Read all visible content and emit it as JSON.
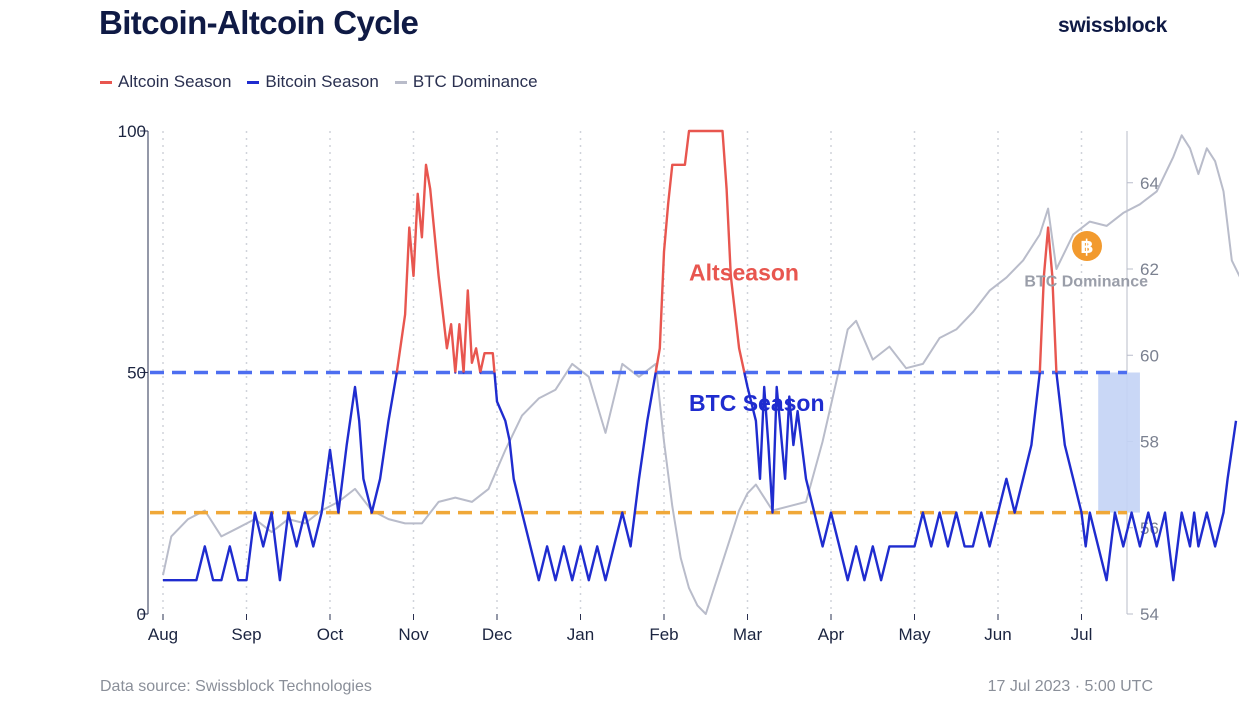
{
  "header": {
    "title": "Bitcoin-Altcoin Cycle",
    "brand": "swissblock"
  },
  "legend": [
    {
      "label": "Altcoin Season",
      "color": "#e8564f"
    },
    {
      "label": "Bitcoin Season",
      "color": "#1f2ccf"
    },
    {
      "label": "BTC Dominance",
      "color": "#b9bcca"
    }
  ],
  "footer": {
    "source": "Data source: Swissblock Technologies",
    "date": "17 Jul 2023 · 5:00 UTC"
  },
  "chart_data": {
    "type": "line",
    "title": "Bitcoin-Altcoin Cycle",
    "x_labels": [
      "Aug",
      "Sep",
      "Oct",
      "Nov",
      "Dec",
      "Jan",
      "Feb",
      "Mar",
      "Apr",
      "May",
      "Jun",
      "Jul"
    ],
    "y_left": {
      "range": [
        0,
        100
      ],
      "ticks": [
        0,
        50,
        100
      ]
    },
    "y_right": {
      "range": [
        54,
        65.2
      ],
      "ticks": [
        54,
        56,
        58,
        60,
        62,
        64
      ]
    },
    "grid": "vertical dotted",
    "legend_placement": "top-left",
    "thresholds": [
      {
        "value": 50,
        "color": "#4d6ef0",
        "style": "dashed"
      },
      {
        "value": 21,
        "color": "#f0a838",
        "style": "dashed"
      }
    ],
    "annotations": [
      {
        "text": "Altseason",
        "color": "#e8564f",
        "month": 6.3,
        "value": 69
      },
      {
        "text": "BTC Season",
        "color": "#1f2ccf",
        "month": 6.3,
        "value": 42
      },
      {
        "text": "BTC Dominance",
        "color": "#9a9ea9",
        "month": 11.8,
        "value_right": 61.6
      }
    ],
    "shaded_region": {
      "from_month": 11.2,
      "to_month": 11.7,
      "from_value": 21,
      "to_value": 50,
      "color": "#c3d3f5"
    },
    "series": [
      {
        "name": "Bitcoin-Altcoin Cycle",
        "axis": "left",
        "points": [
          [
            0.0,
            7
          ],
          [
            0.4,
            7
          ],
          [
            0.5,
            14
          ],
          [
            0.6,
            7
          ],
          [
            0.7,
            7
          ],
          [
            0.8,
            14
          ],
          [
            0.9,
            7
          ],
          [
            1.0,
            7
          ],
          [
            1.1,
            21
          ],
          [
            1.2,
            14
          ],
          [
            1.3,
            21
          ],
          [
            1.4,
            7
          ],
          [
            1.5,
            21
          ],
          [
            1.6,
            14
          ],
          [
            1.7,
            21
          ],
          [
            1.8,
            14
          ],
          [
            1.9,
            21
          ],
          [
            2.0,
            34
          ],
          [
            2.1,
            21
          ],
          [
            2.2,
            35
          ],
          [
            2.3,
            47
          ],
          [
            2.35,
            40
          ],
          [
            2.4,
            28
          ],
          [
            2.5,
            21
          ],
          [
            2.6,
            28
          ],
          [
            2.7,
            40
          ],
          [
            2.8,
            50
          ],
          [
            2.9,
            62
          ],
          [
            2.95,
            80
          ],
          [
            3.0,
            70
          ],
          [
            3.05,
            87
          ],
          [
            3.1,
            78
          ],
          [
            3.15,
            93
          ],
          [
            3.2,
            88
          ],
          [
            3.3,
            70
          ],
          [
            3.4,
            55
          ],
          [
            3.45,
            60
          ],
          [
            3.5,
            50
          ],
          [
            3.55,
            60
          ],
          [
            3.6,
            50
          ],
          [
            3.65,
            67
          ],
          [
            3.7,
            52
          ],
          [
            3.75,
            55
          ],
          [
            3.8,
            50
          ],
          [
            3.85,
            54
          ],
          [
            3.95,
            54
          ],
          [
            4.0,
            44
          ],
          [
            4.1,
            40
          ],
          [
            4.15,
            36
          ],
          [
            4.2,
            28
          ],
          [
            4.3,
            21
          ],
          [
            4.4,
            14
          ],
          [
            4.5,
            7
          ],
          [
            4.6,
            14
          ],
          [
            4.7,
            7
          ],
          [
            4.8,
            14
          ],
          [
            4.9,
            7
          ],
          [
            5.0,
            14
          ],
          [
            5.1,
            7
          ],
          [
            5.2,
            14
          ],
          [
            5.3,
            7
          ],
          [
            5.4,
            14
          ],
          [
            5.5,
            21
          ],
          [
            5.6,
            14
          ],
          [
            5.7,
            28
          ],
          [
            5.8,
            40
          ],
          [
            5.9,
            50
          ],
          [
            5.95,
            55
          ],
          [
            6.0,
            75
          ],
          [
            6.05,
            85
          ],
          [
            6.1,
            93
          ],
          [
            6.25,
            93
          ],
          [
            6.3,
            100
          ],
          [
            6.7,
            100
          ],
          [
            6.75,
            88
          ],
          [
            6.8,
            70
          ],
          [
            6.9,
            55
          ],
          [
            7.0,
            47
          ],
          [
            7.1,
            40
          ],
          [
            7.15,
            28
          ],
          [
            7.2,
            47
          ],
          [
            7.25,
            35
          ],
          [
            7.3,
            21
          ],
          [
            7.35,
            47
          ],
          [
            7.45,
            28
          ],
          [
            7.5,
            45
          ],
          [
            7.55,
            35
          ],
          [
            7.6,
            42
          ],
          [
            7.7,
            28
          ],
          [
            7.8,
            21
          ],
          [
            7.9,
            14
          ],
          [
            8.0,
            21
          ],
          [
            8.1,
            14
          ],
          [
            8.2,
            7
          ],
          [
            8.3,
            14
          ],
          [
            8.4,
            7
          ],
          [
            8.5,
            14
          ],
          [
            8.6,
            7
          ],
          [
            8.7,
            14
          ],
          [
            8.8,
            14
          ],
          [
            9.0,
            14
          ],
          [
            9.1,
            21
          ],
          [
            9.2,
            14
          ],
          [
            9.3,
            21
          ],
          [
            9.4,
            14
          ],
          [
            9.5,
            21
          ],
          [
            9.6,
            14
          ],
          [
            9.7,
            14
          ],
          [
            9.8,
            21
          ],
          [
            9.9,
            14
          ],
          [
            10.0,
            21
          ],
          [
            10.1,
            28
          ],
          [
            10.2,
            21
          ],
          [
            10.3,
            28
          ],
          [
            10.4,
            35
          ],
          [
            10.5,
            50
          ],
          [
            10.55,
            70
          ],
          [
            10.6,
            80
          ],
          [
            10.65,
            70
          ],
          [
            10.7,
            50
          ],
          [
            10.8,
            35
          ],
          [
            10.9,
            28
          ],
          [
            11.0,
            21
          ],
          [
            11.05,
            14
          ],
          [
            11.1,
            21
          ],
          [
            11.2,
            14
          ],
          [
            11.3,
            7
          ],
          [
            11.4,
            21
          ],
          [
            11.5,
            14
          ],
          [
            11.6,
            21
          ],
          [
            11.7,
            14
          ],
          [
            11.8,
            21
          ],
          [
            11.9,
            14
          ],
          [
            12.0,
            21
          ],
          [
            12.1,
            7
          ],
          [
            12.2,
            21
          ],
          [
            12.3,
            14
          ],
          [
            12.35,
            21
          ],
          [
            12.4,
            14
          ],
          [
            12.5,
            21
          ],
          [
            12.6,
            14
          ],
          [
            12.7,
            21
          ],
          [
            12.75,
            28
          ],
          [
            12.85,
            40
          ]
        ]
      },
      {
        "name": "BTC Dominance",
        "axis": "right",
        "points": [
          [
            0.0,
            54.9
          ],
          [
            0.1,
            55.8
          ],
          [
            0.3,
            56.2
          ],
          [
            0.5,
            56.4
          ],
          [
            0.7,
            55.8
          ],
          [
            0.9,
            56.0
          ],
          [
            1.1,
            56.2
          ],
          [
            1.3,
            55.9
          ],
          [
            1.5,
            56.2
          ],
          [
            1.7,
            56.1
          ],
          [
            1.9,
            56.4
          ],
          [
            2.1,
            56.6
          ],
          [
            2.3,
            56.9
          ],
          [
            2.5,
            56.4
          ],
          [
            2.7,
            56.2
          ],
          [
            2.9,
            56.1
          ],
          [
            3.1,
            56.1
          ],
          [
            3.3,
            56.6
          ],
          [
            3.5,
            56.7
          ],
          [
            3.7,
            56.6
          ],
          [
            3.9,
            56.9
          ],
          [
            4.1,
            57.8
          ],
          [
            4.3,
            58.6
          ],
          [
            4.5,
            59.0
          ],
          [
            4.7,
            59.2
          ],
          [
            4.9,
            59.8
          ],
          [
            5.1,
            59.5
          ],
          [
            5.3,
            58.2
          ],
          [
            5.5,
            59.8
          ],
          [
            5.7,
            59.5
          ],
          [
            5.9,
            59.8
          ],
          [
            6.0,
            58.0
          ],
          [
            6.1,
            56.5
          ],
          [
            6.2,
            55.3
          ],
          [
            6.3,
            54.6
          ],
          [
            6.4,
            54.2
          ],
          [
            6.5,
            54.0
          ],
          [
            6.6,
            54.6
          ],
          [
            6.7,
            55.2
          ],
          [
            6.8,
            55.8
          ],
          [
            6.9,
            56.4
          ],
          [
            7.0,
            56.8
          ],
          [
            7.1,
            57.0
          ],
          [
            7.2,
            56.7
          ],
          [
            7.3,
            56.4
          ],
          [
            7.5,
            56.5
          ],
          [
            7.7,
            56.6
          ],
          [
            7.9,
            58.0
          ],
          [
            8.1,
            59.7
          ],
          [
            8.2,
            60.6
          ],
          [
            8.3,
            60.8
          ],
          [
            8.5,
            59.9
          ],
          [
            8.7,
            60.2
          ],
          [
            8.9,
            59.7
          ],
          [
            9.1,
            59.8
          ],
          [
            9.3,
            60.4
          ],
          [
            9.5,
            60.6
          ],
          [
            9.7,
            61.0
          ],
          [
            9.9,
            61.5
          ],
          [
            10.1,
            61.8
          ],
          [
            10.3,
            62.2
          ],
          [
            10.5,
            62.8
          ],
          [
            10.6,
            63.4
          ],
          [
            10.7,
            62.0
          ],
          [
            10.8,
            62.4
          ],
          [
            10.9,
            62.8
          ],
          [
            11.1,
            63.1
          ],
          [
            11.3,
            63.0
          ],
          [
            11.5,
            63.3
          ],
          [
            11.7,
            63.5
          ],
          [
            11.9,
            63.8
          ],
          [
            12.1,
            64.6
          ],
          [
            12.2,
            65.1
          ],
          [
            12.3,
            64.8
          ],
          [
            12.4,
            64.2
          ],
          [
            12.5,
            64.8
          ],
          [
            12.6,
            64.5
          ],
          [
            12.7,
            63.8
          ],
          [
            12.8,
            62.2
          ],
          [
            12.9,
            61.8
          ]
        ]
      }
    ]
  }
}
